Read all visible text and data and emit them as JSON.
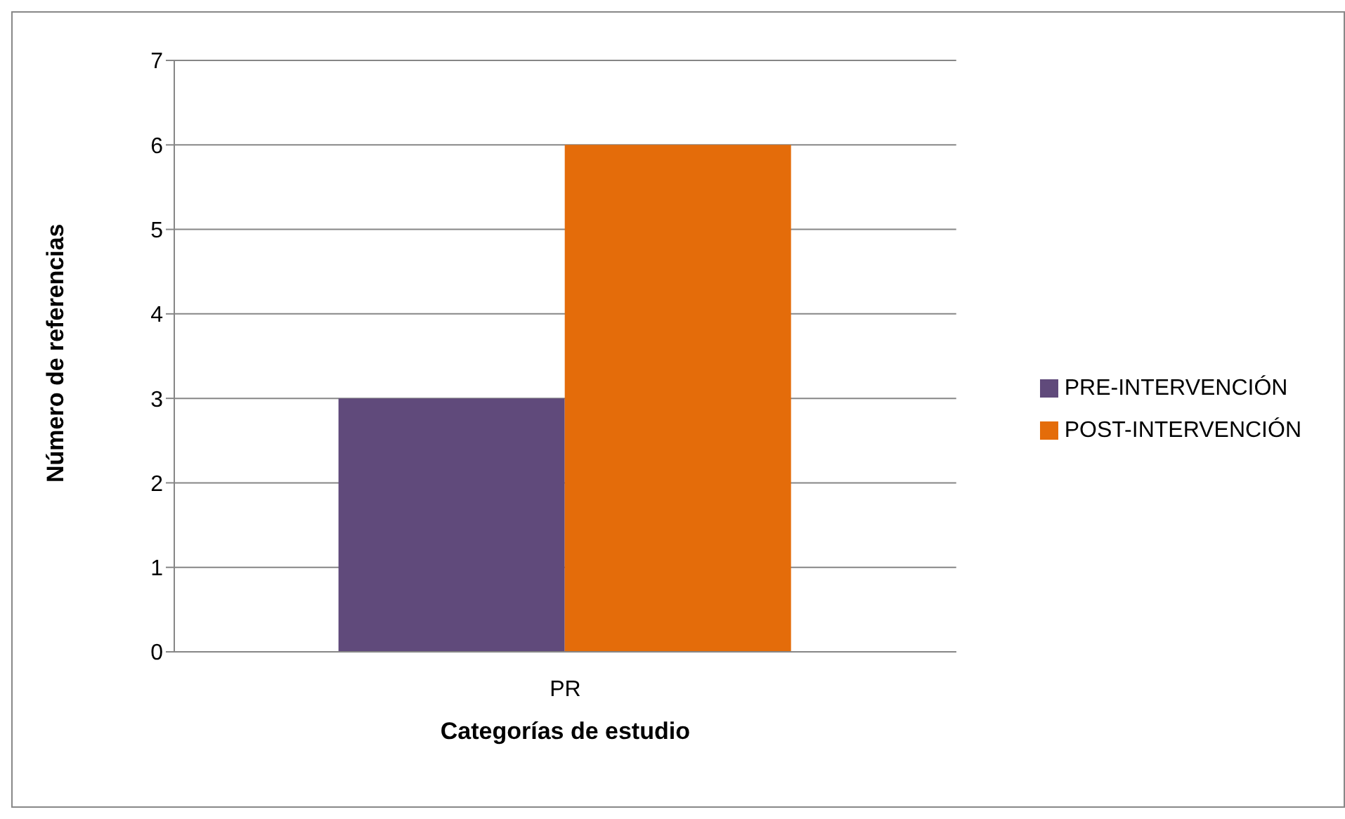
{
  "chart_data": {
    "type": "bar",
    "xlabel": "Categorías de estudio",
    "ylabel": "Número de referencias",
    "categories": [
      "PR"
    ],
    "series": [
      {
        "name": "PRE-INTERVENCIÓN",
        "color": "#604a7b",
        "values": [
          3
        ]
      },
      {
        "name": "POST-INTERVENCIÓN",
        "color": "#e46c0a",
        "values": [
          6
        ]
      }
    ],
    "ylim": [
      0,
      7
    ],
    "yticks": [
      0,
      1,
      2,
      3,
      4,
      5,
      6,
      7
    ],
    "grid": "y",
    "legend": "right"
  }
}
